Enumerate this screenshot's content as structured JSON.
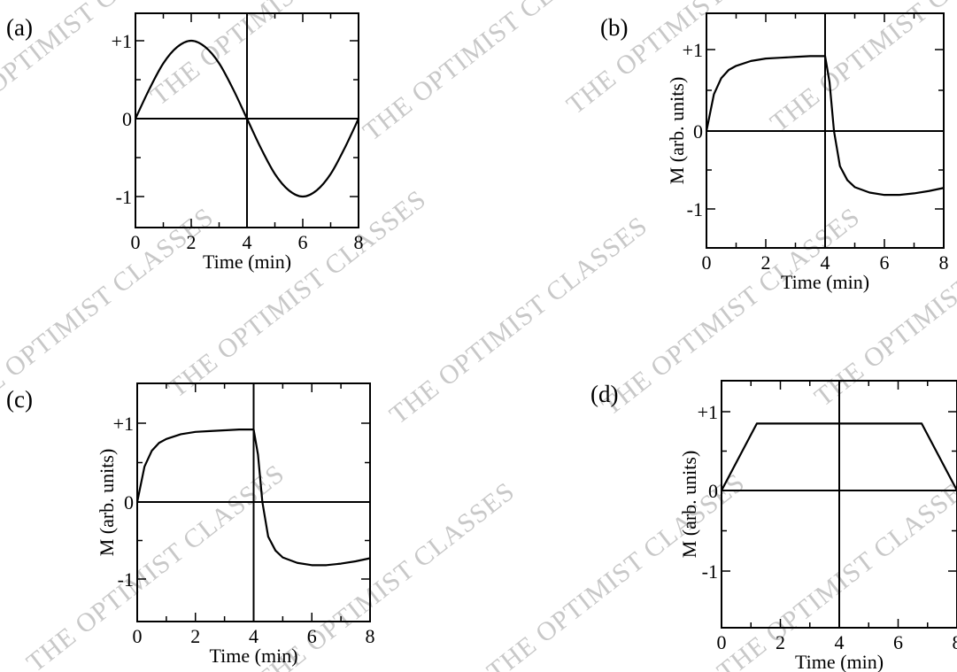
{
  "watermark_text": "THE OPTIMIST CLASSES",
  "chart_data": [
    {
      "panel": "(a)",
      "type": "line",
      "xlabel": "Time (min)",
      "ylabel": "",
      "xlim": [
        0,
        8
      ],
      "ylim": [
        -1.25,
        1.25
      ],
      "x_ticks": [
        "0",
        "2",
        "4",
        "6",
        "8"
      ],
      "y_ticks": [
        "+1",
        "0",
        "-1"
      ],
      "x": [
        0,
        0.5,
        1,
        1.5,
        2,
        2.5,
        3,
        3.5,
        4,
        4.5,
        5,
        5.5,
        6,
        6.5,
        7,
        7.5,
        8
      ],
      "series": [
        {
          "values": [
            0,
            0.38,
            0.71,
            0.92,
            1.0,
            0.92,
            0.71,
            0.38,
            0,
            -0.38,
            -0.71,
            -0.92,
            -1.0,
            -0.92,
            -0.71,
            -0.38,
            0
          ]
        }
      ]
    },
    {
      "panel": "(b)",
      "type": "line",
      "xlabel": "Time (min)",
      "ylabel": "M (arb. units)",
      "xlim": [
        0,
        8
      ],
      "ylim": [
        -1.45,
        1.45
      ],
      "x_ticks": [
        "0",
        "2",
        "4",
        "6",
        "8"
      ],
      "y_ticks": [
        "+1",
        "0",
        "-1"
      ],
      "x": [
        0,
        0.25,
        0.5,
        0.75,
        1,
        1.5,
        2,
        2.5,
        3,
        3.5,
        4,
        4.15,
        4.3,
        4.5,
        4.75,
        5,
        5.5,
        6,
        6.5,
        7,
        7.5,
        8
      ],
      "series": [
        {
          "values": [
            0,
            0.45,
            0.65,
            0.75,
            0.8,
            0.86,
            0.89,
            0.9,
            0.91,
            0.92,
            0.92,
            0.6,
            0.0,
            -0.45,
            -0.63,
            -0.72,
            -0.79,
            -0.82,
            -0.82,
            -0.8,
            -0.77,
            -0.73
          ]
        }
      ]
    },
    {
      "panel": "(c)",
      "type": "line",
      "xlabel": "Time (min)",
      "ylabel": "M (arb. units)",
      "xlim": [
        0,
        8
      ],
      "ylim": [
        -1.45,
        1.45
      ],
      "x_ticks": [
        "0",
        "2",
        "4",
        "6",
        "8"
      ],
      "y_ticks": [
        "+1",
        "0",
        "-1"
      ],
      "x": [
        0,
        0.25,
        0.5,
        0.75,
        1,
        1.5,
        2,
        2.5,
        3,
        3.5,
        4,
        4.15,
        4.3,
        4.5,
        4.75,
        5,
        5.5,
        6,
        6.5,
        7,
        7.5,
        8
      ],
      "series": [
        {
          "values": [
            0,
            0.45,
            0.65,
            0.75,
            0.8,
            0.86,
            0.89,
            0.9,
            0.91,
            0.92,
            0.92,
            0.6,
            0.0,
            -0.45,
            -0.63,
            -0.72,
            -0.79,
            -0.82,
            -0.82,
            -0.8,
            -0.77,
            -0.73
          ]
        }
      ]
    },
    {
      "panel": "(d)",
      "type": "line",
      "xlabel": "Time (min)",
      "ylabel": "M (arb. units)",
      "xlim": [
        0,
        8
      ],
      "ylim": [
        -1.45,
        1.45
      ],
      "x_ticks": [
        "0",
        "2",
        "4",
        "6",
        "8"
      ],
      "y_ticks": [
        "+1",
        "0",
        "-1"
      ],
      "x": [
        0,
        1.2,
        6.8,
        8
      ],
      "series": [
        {
          "values": [
            0,
            0.85,
            0.85,
            0
          ]
        }
      ]
    }
  ]
}
